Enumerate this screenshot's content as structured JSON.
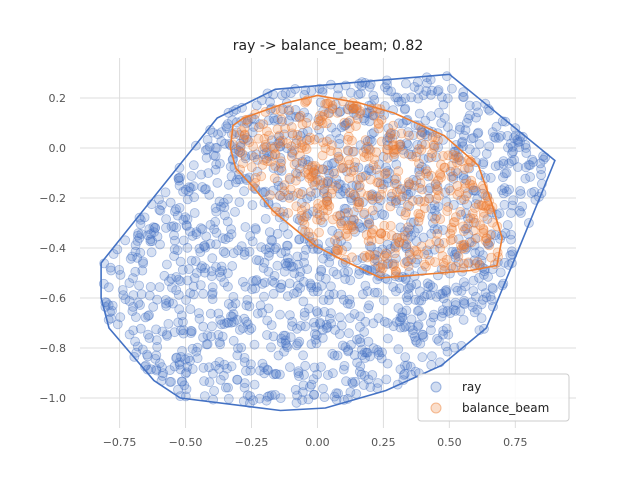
{
  "chart_data": {
    "type": "scatter",
    "title": "ray -> balance_beam; 0.82",
    "xlim": [
      -0.9,
      0.98
    ],
    "ylim": [
      -1.12,
      0.36
    ],
    "x_ticks": [
      -0.75,
      -0.5,
      -0.25,
      0.0,
      0.25,
      0.5,
      0.75
    ],
    "x_tick_labels": [
      "−0.75",
      "−0.50",
      "−0.25",
      "0.00",
      "0.25",
      "0.50",
      "0.75"
    ],
    "y_ticks": [
      0.2,
      0.0,
      -0.2,
      -0.4,
      -0.6,
      -0.8,
      -1.0
    ],
    "y_tick_labels": [
      "0.2",
      "0.0",
      "−0.2",
      "−0.4",
      "−0.6",
      "−0.8",
      "−1.0"
    ],
    "grid": true,
    "legend_position": "lower-right",
    "series": [
      {
        "name": "ray",
        "color": "#4472c4",
        "marker_alpha": 0.22,
        "approx_point_count": 1500,
        "hull": [
          [
            -0.82,
            -0.46
          ],
          [
            -0.38,
            0.12
          ],
          [
            -0.16,
            0.235
          ],
          [
            0.5,
            0.295
          ],
          [
            0.9,
            -0.05
          ],
          [
            0.85,
            -0.18
          ],
          [
            0.64,
            -0.72
          ],
          [
            0.47,
            -0.87
          ],
          [
            0.26,
            -0.97
          ],
          [
            0.03,
            -1.04
          ],
          [
            -0.14,
            -1.05
          ],
          [
            -0.52,
            -1.0
          ],
          [
            -0.62,
            -0.93
          ],
          [
            -0.79,
            -0.72
          ],
          [
            -0.82,
            -0.6
          ]
        ]
      },
      {
        "name": "balance_beam",
        "color": "#ed7d31",
        "marker_alpha": 0.22,
        "approx_point_count": 500,
        "hull": [
          [
            -0.32,
            0.09
          ],
          [
            -0.28,
            0.12
          ],
          [
            -0.12,
            0.18
          ],
          [
            0.0,
            0.21
          ],
          [
            0.16,
            0.18
          ],
          [
            0.29,
            0.14
          ],
          [
            0.48,
            0.05
          ],
          [
            0.61,
            -0.07
          ],
          [
            0.66,
            -0.22
          ],
          [
            0.7,
            -0.36
          ],
          [
            0.68,
            -0.47
          ],
          [
            0.58,
            -0.49
          ],
          [
            0.24,
            -0.52
          ],
          [
            0.08,
            -0.44
          ],
          [
            -0.01,
            -0.39
          ],
          [
            -0.09,
            -0.32
          ],
          [
            -0.17,
            -0.25
          ],
          [
            -0.24,
            -0.16
          ],
          [
            -0.31,
            -0.08
          ],
          [
            -0.33,
            0.0
          ]
        ]
      }
    ]
  }
}
